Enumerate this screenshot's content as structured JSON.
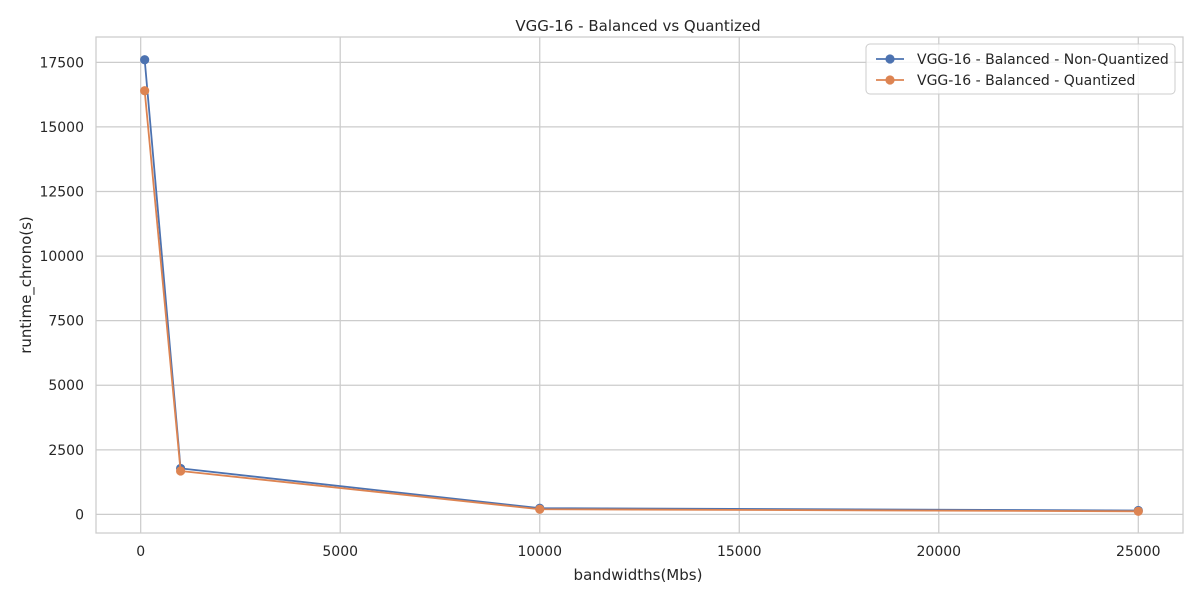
{
  "chart_data": {
    "type": "line",
    "title": "VGG-16 - Balanced vs Quantized",
    "xlabel": "bandwidths(Mbs)",
    "ylabel": "runtime_chrono(s)",
    "xlim": [
      -1120,
      26120
    ],
    "ylim": [
      -720,
      18480
    ],
    "xticks": [
      0,
      5000,
      10000,
      15000,
      20000,
      25000
    ],
    "yticks": [
      0,
      2500,
      5000,
      7500,
      10000,
      12500,
      15000,
      17500
    ],
    "grid": true,
    "legend_position": "top-right",
    "series": [
      {
        "name": "VGG-16 - Balanced - Non-Quantized",
        "color": "#4c72b0",
        "marker": "circle",
        "x": [
          100,
          1000,
          10000,
          25000
        ],
        "y": [
          17600,
          1780,
          240,
          150
        ]
      },
      {
        "name": "VGG-16 - Balanced - Quantized",
        "color": "#dd8452",
        "marker": "circle",
        "x": [
          100,
          1000,
          10000,
          25000
        ],
        "y": [
          16400,
          1680,
          200,
          120
        ]
      }
    ]
  }
}
